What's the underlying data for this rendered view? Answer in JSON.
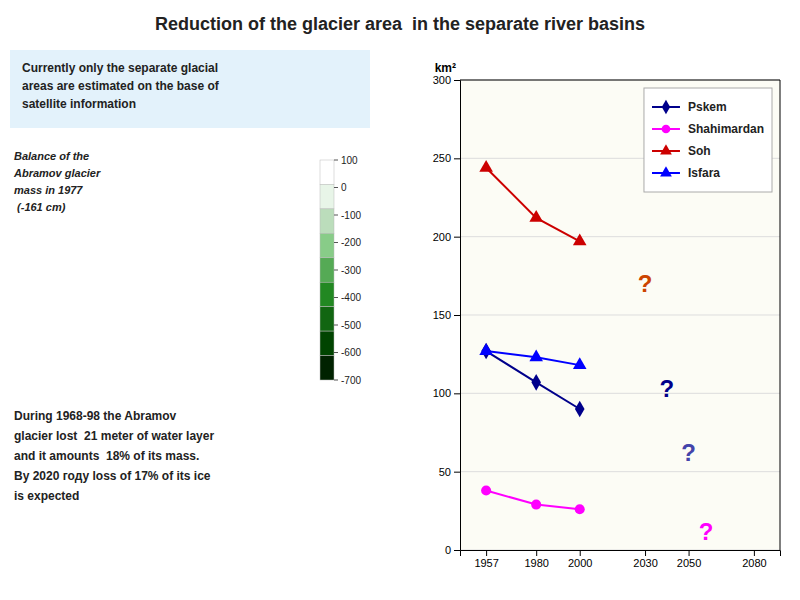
{
  "chart_data": {
    "type": "line",
    "title": "Reduction of the glacier area  in the separate river basins",
    "x": [
      1957,
      1980,
      2000
    ],
    "xlim": [
      1945,
      2092
    ],
    "xticks": [
      1957,
      1980,
      2000,
      2030,
      2050,
      2080
    ],
    "ylim": [
      0,
      300
    ],
    "yticks": [
      0,
      50,
      100,
      150,
      200,
      250,
      300
    ],
    "y_label": "km²",
    "grid": "y",
    "legend": "upper right",
    "series": [
      {
        "name": "Pskem",
        "color": "#00008B",
        "marker": "diamond",
        "values": [
          127,
          107,
          90
        ]
      },
      {
        "name": "Shahimardan",
        "color": "#FF00FF",
        "marker": "circle",
        "values": [
          38,
          29,
          26
        ]
      },
      {
        "name": "Soh",
        "color": "#CC0000",
        "marker": "triangle",
        "values": [
          244,
          212,
          197
        ]
      },
      {
        "name": "Isfara",
        "color": "#0000FF",
        "marker": "triangle",
        "values": [
          127,
          123,
          118
        ]
      }
    ],
    "annotations": [
      {
        "text": "?",
        "x": 2030,
        "y": 170,
        "color": "#CC4400"
      },
      {
        "text": "?",
        "x": 2040,
        "y": 103,
        "color": "#00008B"
      },
      {
        "text": "?",
        "x": 2050,
        "y": 62,
        "color": "#4444AA"
      },
      {
        "text": "?",
        "x": 2058,
        "y": 12,
        "color": "#FF00FF"
      },
      {
        "text": "Currently only the separate glacial\nareas are estimated on the base of\nsatellite information"
      },
      {
        "text": "Balance of the\nAbramov glacier\nmass in 1977\n (-161 cm)"
      },
      {
        "text": "During 1968-98 the Abramov\nglacier lost  21 meter of water layer\nand it amounts  18% of its mass.\nBy 2020 году loss of 17% of its ice\nis expected"
      }
    ],
    "colorbar": {
      "range": [
        -700,
        100
      ],
      "ticks": [
        100,
        0,
        -100,
        -200,
        -300,
        -400,
        -500,
        -600,
        -700
      ],
      "colors": [
        "#FFFFFF",
        "#E8F5E8",
        "#BBDDBB",
        "#88CC88",
        "#55AA55",
        "#228822",
        "#116611",
        "#004400",
        "#002200"
      ]
    }
  }
}
